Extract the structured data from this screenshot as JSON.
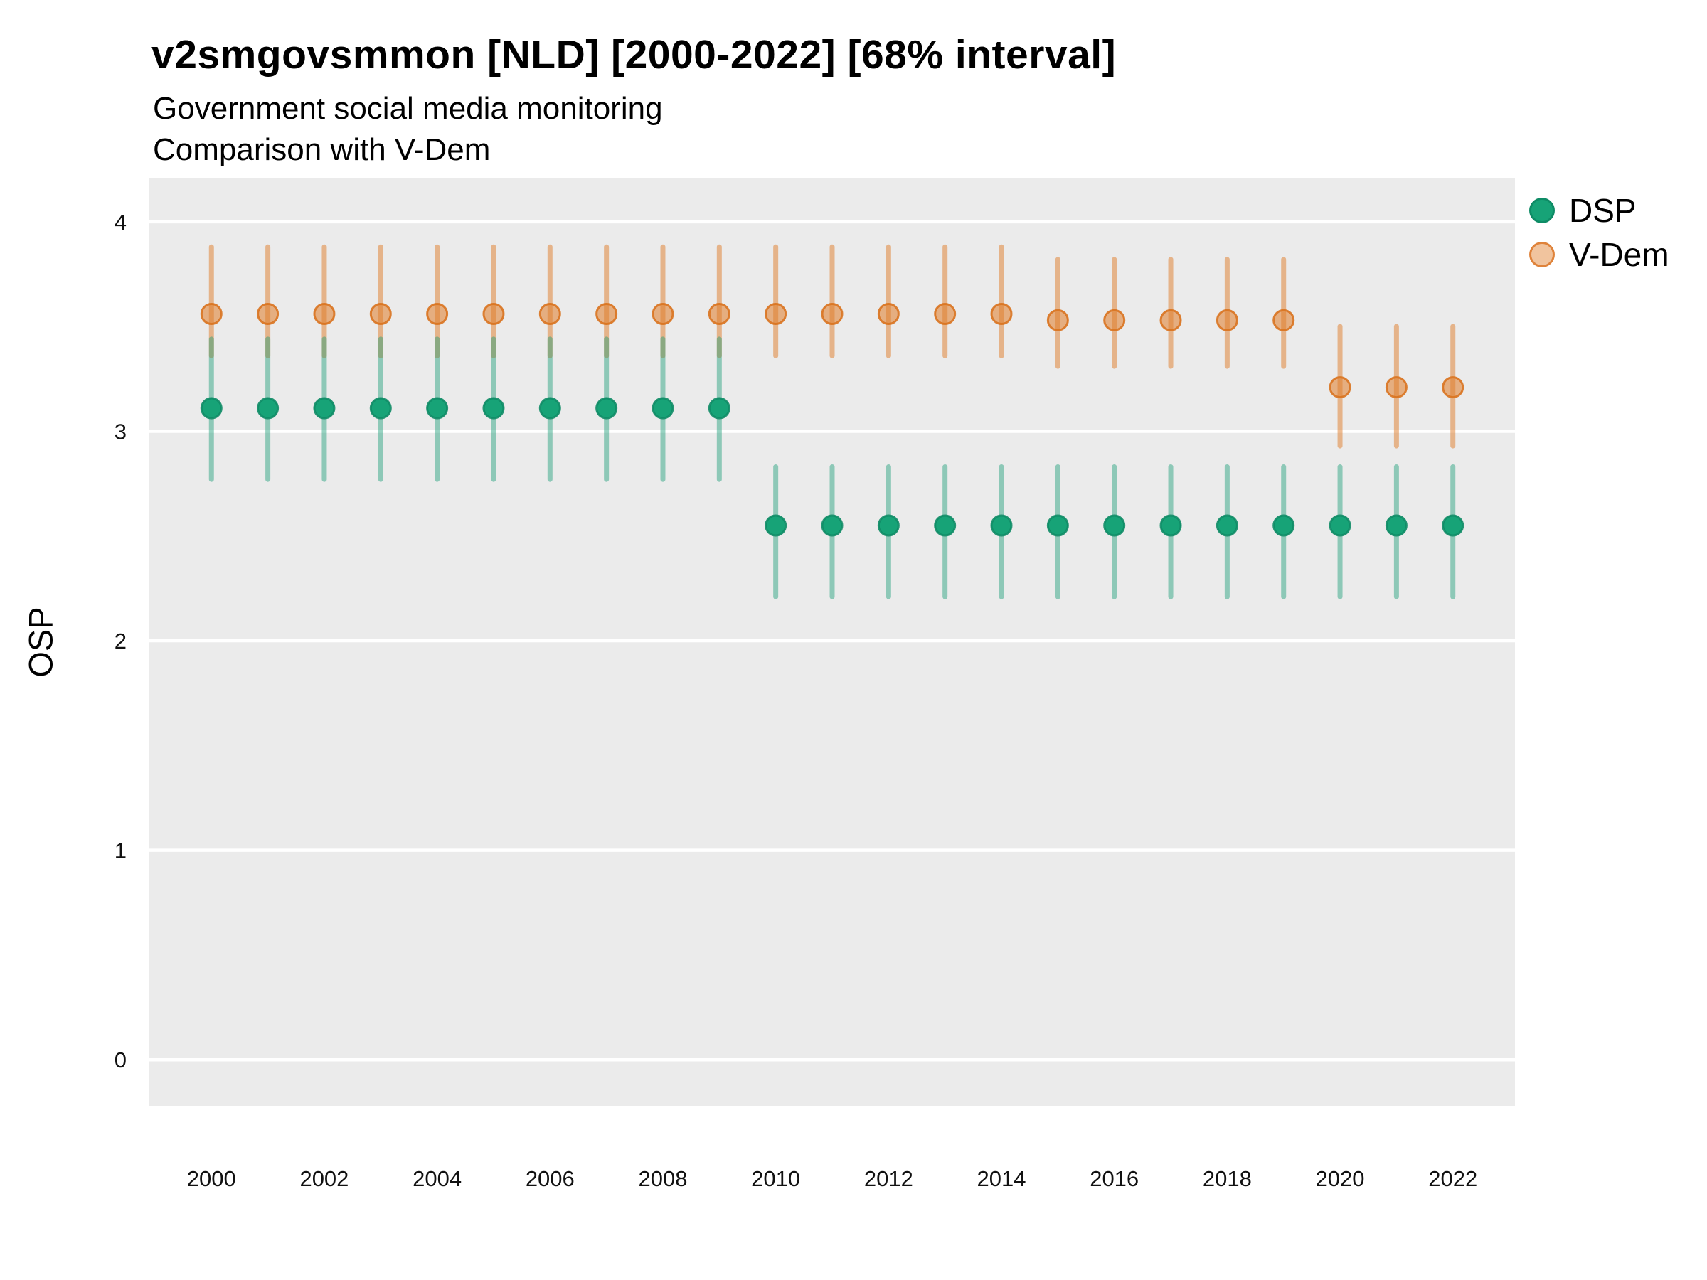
{
  "header": {
    "title": "v2smgovsmmon [NLD] [2000-2022] [68% interval]",
    "subtitle": "Government social media monitoring",
    "subtitle2": "Comparison with V-Dem"
  },
  "chart_data": {
    "type": "scatter",
    "title": "v2smgovsmmon [NLD] [2000-2022] [68% interval]",
    "subtitle": "Government social media monitoring",
    "subtitle2": "Comparison with V-Dem",
    "ylabel": "OSP",
    "xlabel": "",
    "ylim": [
      -0.22,
      4.21
    ],
    "xlim": [
      1998.9,
      2023.1
    ],
    "yticks": [
      4,
      3,
      2,
      1,
      0
    ],
    "xticks": [
      2000,
      2002,
      2004,
      2006,
      2008,
      2010,
      2012,
      2014,
      2016,
      2018,
      2020,
      2022
    ],
    "grid": true,
    "legend_position": "right",
    "interval_label": "68% interval",
    "x": [
      2000,
      2001,
      2002,
      2003,
      2004,
      2005,
      2006,
      2007,
      2008,
      2009,
      2010,
      2011,
      2012,
      2013,
      2014,
      2015,
      2016,
      2017,
      2018,
      2019,
      2020,
      2021,
      2022
    ],
    "series": [
      {
        "name": "DSP",
        "color": "#1b9e77",
        "point_fill": "#17a377",
        "point_stroke": "#0f8c66",
        "point_fill_opacity": 1,
        "line_color": "#1b9e77",
        "line_opacity": 0.45,
        "median": [
          3.11,
          3.11,
          3.11,
          3.11,
          3.11,
          3.11,
          3.11,
          3.11,
          3.11,
          3.11,
          2.55,
          2.55,
          2.55,
          2.55,
          2.55,
          2.55,
          2.55,
          2.55,
          2.55,
          2.55,
          2.55,
          2.55,
          2.55
        ],
        "lo": [
          2.77,
          2.77,
          2.77,
          2.77,
          2.77,
          2.77,
          2.77,
          2.77,
          2.77,
          2.77,
          2.21,
          2.21,
          2.21,
          2.21,
          2.21,
          2.21,
          2.21,
          2.21,
          2.21,
          2.21,
          2.21,
          2.21,
          2.21
        ],
        "hi": [
          3.44,
          3.44,
          3.44,
          3.44,
          3.44,
          3.44,
          3.44,
          3.44,
          3.44,
          3.44,
          2.83,
          2.83,
          2.83,
          2.83,
          2.83,
          2.83,
          2.83,
          2.83,
          2.83,
          2.83,
          2.83,
          2.83,
          2.83
        ]
      },
      {
        "name": "V-Dem",
        "color": "#e07c28",
        "point_fill": "#e07c28",
        "point_stroke": "#d9731f",
        "point_fill_opacity": 0.55,
        "line_color": "#e07c28",
        "line_opacity": 0.5,
        "median": [
          3.56,
          3.56,
          3.56,
          3.56,
          3.56,
          3.56,
          3.56,
          3.56,
          3.56,
          3.56,
          3.56,
          3.56,
          3.56,
          3.56,
          3.56,
          3.53,
          3.53,
          3.53,
          3.53,
          3.53,
          3.21,
          3.21,
          3.21
        ],
        "lo": [
          3.36,
          3.36,
          3.36,
          3.36,
          3.36,
          3.36,
          3.36,
          3.36,
          3.36,
          3.36,
          3.36,
          3.36,
          3.36,
          3.36,
          3.36,
          3.31,
          3.31,
          3.31,
          3.31,
          3.31,
          2.93,
          2.93,
          2.93
        ],
        "hi": [
          3.88,
          3.88,
          3.88,
          3.88,
          3.88,
          3.88,
          3.88,
          3.88,
          3.88,
          3.88,
          3.88,
          3.88,
          3.88,
          3.88,
          3.88,
          3.82,
          3.82,
          3.82,
          3.82,
          3.82,
          3.5,
          3.5,
          3.5
        ]
      }
    ],
    "colors": {
      "panel_background": "#ebebeb",
      "grid_line": "#ffffff",
      "tick_label": "#111111"
    }
  }
}
